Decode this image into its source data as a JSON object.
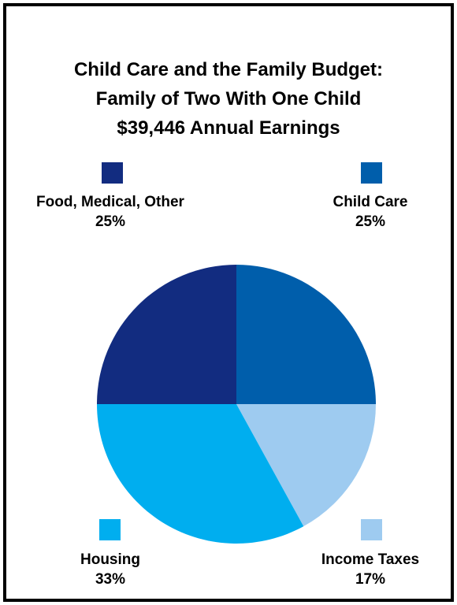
{
  "chart_data": {
    "type": "pie",
    "title_lines": [
      "Child Care and the Family Budget:",
      "Family of Two With One Child",
      "$39,446 Annual Earnings"
    ],
    "slices": [
      {
        "label": "Child Care",
        "percent_label": "25%",
        "value": 25,
        "color": "#005eab"
      },
      {
        "label": "Income Taxes",
        "percent_label": "17%",
        "value": 17,
        "color": "#9ecbf0"
      },
      {
        "label": "Housing",
        "percent_label": "33%",
        "value": 33,
        "color": "#00aeef"
      },
      {
        "label": "Food, Medical, Other",
        "percent_label": "25%",
        "value": 25,
        "color": "#122c80"
      }
    ]
  }
}
